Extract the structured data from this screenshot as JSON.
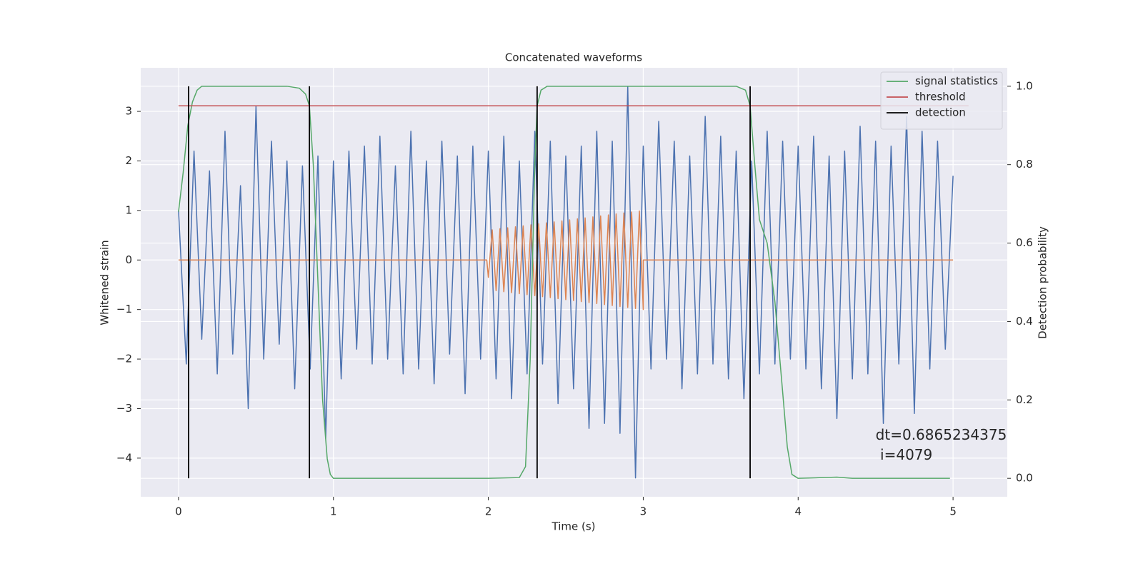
{
  "chart_data": {
    "type": "line",
    "title": "Concatenated waveforms",
    "xlabel": "Time (s)",
    "ylabel": "Whitened strain",
    "y2label": "Detection probability",
    "xlim": [
      -0.244,
      5.35
    ],
    "xticks": [
      0,
      1,
      2,
      3,
      4,
      5
    ],
    "ylim": [
      -4.78,
      3.88
    ],
    "yticks": [
      {
        "value": -4,
        "label": "−4"
      },
      {
        "value": -3,
        "label": "−3"
      },
      {
        "value": -2,
        "label": "−2"
      },
      {
        "value": -1,
        "label": "−1"
      },
      0,
      1,
      2,
      3
    ],
    "y2lim": [
      -0.047,
      1.047
    ],
    "y2ticks": [
      {
        "value": 0,
        "label": "0.0"
      },
      0.2,
      0.4,
      0.6,
      0.8,
      {
        "value": 1,
        "label": "1.0"
      }
    ],
    "grid": true,
    "legend": "upper right",
    "background": "#eaeaf2",
    "series": [
      {
        "color": "#4c72b0",
        "x": [
          0,
          0.05,
          0.1,
          0.15,
          0.2,
          0.25,
          0.3,
          0.35,
          0.4,
          0.45,
          0.5,
          0.55,
          0.6,
          0.65,
          0.7,
          0.75,
          0.8,
          0.85,
          0.9,
          0.95,
          1,
          1.05,
          1.1,
          1.15,
          1.2,
          1.25,
          1.3,
          1.35,
          1.4,
          1.45,
          1.5,
          1.55,
          1.6,
          1.65,
          1.7,
          1.75,
          1.8,
          1.85,
          1.9,
          1.95,
          2,
          2.05,
          2.1,
          2.15,
          2.2,
          2.25,
          2.3,
          2.35,
          2.4,
          2.45,
          2.5,
          2.55,
          2.6,
          2.65,
          2.7,
          2.75,
          2.8,
          2.85,
          2.9,
          2.95,
          3,
          3.05,
          3.1,
          3.15,
          3.2,
          3.25,
          3.3,
          3.35,
          3.4,
          3.45,
          3.5,
          3.55,
          3.6,
          3.65,
          3.7,
          3.75,
          3.8,
          3.85,
          3.9,
          3.95,
          4,
          4.05,
          4.1,
          4.15,
          4.2,
          4.25,
          4.3,
          4.35,
          4.4,
          4.45,
          4.5,
          4.55,
          4.6,
          4.65,
          4.7,
          4.75,
          4.8,
          4.85,
          4.9,
          4.95,
          5
        ],
        "values": [
          1.0,
          -2.1,
          2.2,
          -1.6,
          1.8,
          -2.3,
          2.6,
          -1.9,
          1.5,
          -3.0,
          3.1,
          -2.0,
          2.4,
          -1.7,
          2.0,
          -2.6,
          1.9,
          -2.2,
          2.1,
          -3.6,
          2.0,
          -2.4,
          2.2,
          -1.8,
          2.3,
          -2.1,
          2.5,
          -2.0,
          1.9,
          -2.3,
          2.6,
          -2.2,
          2.0,
          -2.5,
          2.4,
          -1.9,
          2.1,
          -2.7,
          2.3,
          -2.0,
          2.2,
          -2.4,
          2.5,
          -2.8,
          2.0,
          -2.3,
          2.6,
          -2.1,
          2.4,
          -2.9,
          2.1,
          -2.6,
          2.3,
          -3.4,
          2.6,
          -3.3,
          2.4,
          -3.5,
          3.5,
          -4.4,
          2.3,
          -2.2,
          2.8,
          -2.0,
          2.4,
          -2.6,
          2.1,
          -2.3,
          2.9,
          -2.1,
          2.5,
          -2.4,
          2.2,
          -2.8,
          2.0,
          -2.3,
          2.6,
          -2.1,
          2.4,
          -2.0,
          2.3,
          -2.2,
          2.5,
          -2.6,
          2.1,
          -3.2,
          2.2,
          -2.4,
          2.7,
          -2.3,
          2.4,
          -3.3,
          2.3,
          -2.1,
          2.9,
          -3.1,
          2.6,
          -2.2,
          2.4,
          -1.8,
          1.7
        ]
      },
      {
        "color": "#dd8452",
        "x": [
          0,
          1.99,
          2.0,
          2.025,
          2.05,
          2.075,
          2.1,
          2.125,
          2.15,
          2.175,
          2.2,
          2.225,
          2.25,
          2.275,
          2.3,
          2.325,
          2.35,
          2.375,
          2.4,
          2.425,
          2.45,
          2.475,
          2.5,
          2.525,
          2.55,
          2.575,
          2.6,
          2.625,
          2.65,
          2.675,
          2.7,
          2.725,
          2.75,
          2.775,
          2.8,
          2.825,
          2.85,
          2.875,
          2.9,
          2.925,
          2.95,
          2.975,
          3.0,
          3.0,
          5.0
        ],
        "values": [
          0,
          0,
          -0.35,
          0.61,
          -0.62,
          0.63,
          -0.64,
          0.65,
          -0.66,
          0.67,
          -0.68,
          0.69,
          -0.7,
          0.71,
          -0.72,
          0.73,
          -0.74,
          0.75,
          -0.76,
          0.77,
          -0.78,
          0.79,
          -0.8,
          0.81,
          -0.82,
          0.83,
          -0.84,
          0.85,
          -0.86,
          0.87,
          -0.88,
          0.89,
          -0.9,
          0.91,
          -0.92,
          0.93,
          -0.94,
          0.95,
          -0.96,
          0.97,
          -0.98,
          0.99,
          -1.0,
          0,
          0
        ]
      },
      {
        "name": "signal statistics",
        "color": "#55a868",
        "axis": "y2",
        "x": [
          0,
          0.03,
          0.06,
          0.09,
          0.12,
          0.15,
          0.2,
          0.4,
          0.7,
          0.78,
          0.82,
          0.845,
          0.87,
          0.9,
          0.93,
          0.96,
          0.98,
          1.0,
          1.5,
          2.0,
          2.2,
          2.24,
          2.27,
          2.3,
          2.315,
          2.34,
          2.38,
          2.45,
          3.0,
          3.6,
          3.66,
          3.69,
          3.72,
          3.75,
          3.8,
          3.85,
          3.9,
          3.93,
          3.96,
          4.0,
          4.25,
          4.35,
          4.98
        ],
        "values": [
          0.68,
          0.78,
          0.9,
          0.96,
          0.99,
          1.0,
          1.0,
          1.0,
          1.0,
          0.995,
          0.98,
          0.95,
          0.8,
          0.5,
          0.2,
          0.05,
          0.01,
          0.0,
          0.0,
          0.0,
          0.002,
          0.03,
          0.3,
          0.8,
          0.95,
          0.99,
          1.0,
          1.0,
          1.0,
          1.0,
          0.99,
          0.95,
          0.8,
          0.66,
          0.6,
          0.45,
          0.22,
          0.08,
          0.01,
          0.0,
          0.003,
          0.0,
          0.0
        ]
      },
      {
        "name": "threshold",
        "color": "#c44e52",
        "axis": "y2",
        "x": [
          0,
          5.1
        ],
        "values": [
          0.95,
          0.95
        ]
      }
    ],
    "detection": {
      "name": "detection",
      "color": "#000000",
      "axis": "y2",
      "x": [
        0.065,
        0.845,
        2.315,
        3.69
      ],
      "range": [
        0,
        1
      ]
    },
    "annotation": {
      "text": [
        "dt=0.6865234375",
        " i=4079"
      ],
      "x": 4.5,
      "y": -3.55
    }
  }
}
